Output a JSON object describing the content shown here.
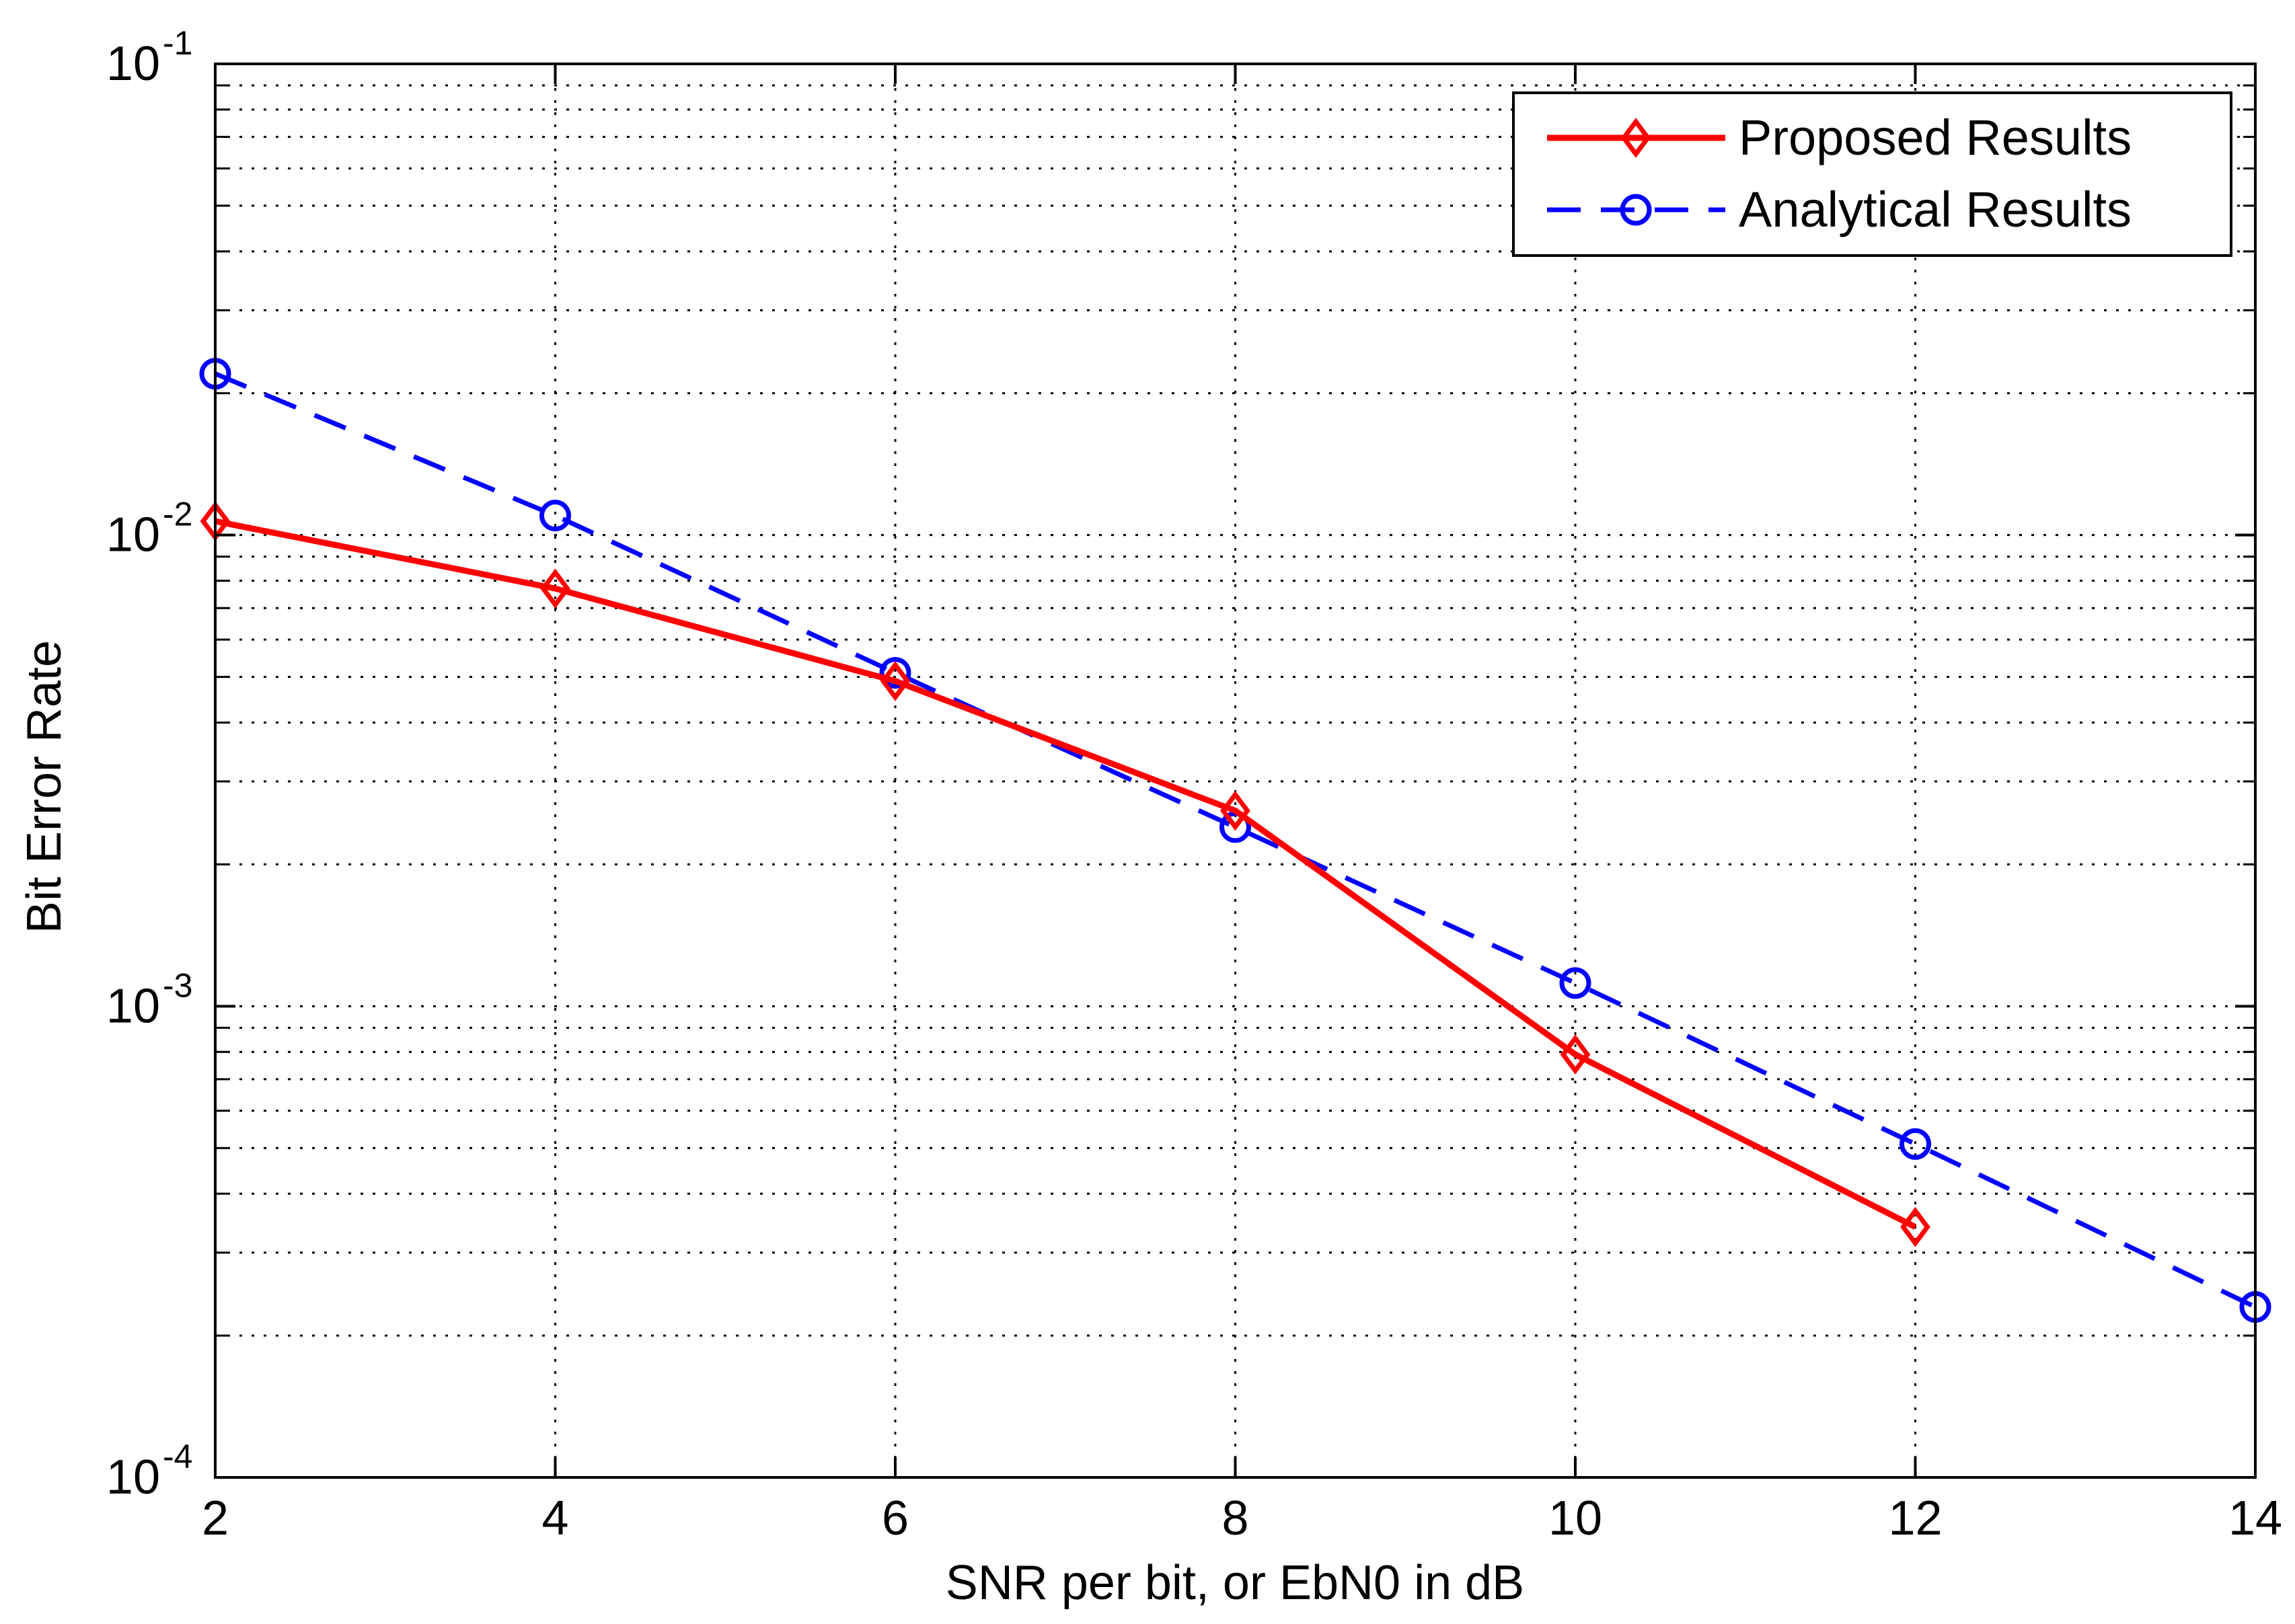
{
  "chart_data": {
    "type": "line",
    "xlabel": "SNR per bit, or EbN0 in dB",
    "ylabel": "Bit Error Rate",
    "xlim": [
      2,
      14
    ],
    "ylim": [
      0.0001,
      0.1
    ],
    "yscale": "log",
    "grid": true,
    "legend_position": "top-right",
    "x_ticks": [
      "2",
      "4",
      "6",
      "8",
      "10",
      "12",
      "14"
    ],
    "y_ticks": [
      {
        "base": "10",
        "exp": "-1",
        "value": 0.1
      },
      {
        "base": "10",
        "exp": "-2",
        "value": 0.01
      },
      {
        "base": "10",
        "exp": "-3",
        "value": 0.001
      },
      {
        "base": "10",
        "exp": "-4",
        "value": 0.0001
      }
    ],
    "series": [
      {
        "name": "Proposed Results",
        "color": "#ff0000",
        "line_style": "solid",
        "marker": "diamond",
        "points": [
          {
            "x": 2,
            "y": 0.0107
          },
          {
            "x": 4,
            "y": 0.0077
          },
          {
            "x": 6,
            "y": 0.0049
          },
          {
            "x": 8,
            "y": 0.0026
          },
          {
            "x": 10,
            "y": 0.00079
          },
          {
            "x": 12,
            "y": 0.00034
          }
        ]
      },
      {
        "name": "Analytical Results",
        "color": "#0000ff",
        "line_style": "dashed",
        "marker": "circle",
        "points": [
          {
            "x": 2,
            "y": 0.022
          },
          {
            "x": 4,
            "y": 0.011
          },
          {
            "x": 6,
            "y": 0.0051
          },
          {
            "x": 8,
            "y": 0.0024
          },
          {
            "x": 10,
            "y": 0.00112
          },
          {
            "x": 12,
            "y": 0.00051
          },
          {
            "x": 14,
            "y": 0.00023
          }
        ]
      }
    ]
  }
}
